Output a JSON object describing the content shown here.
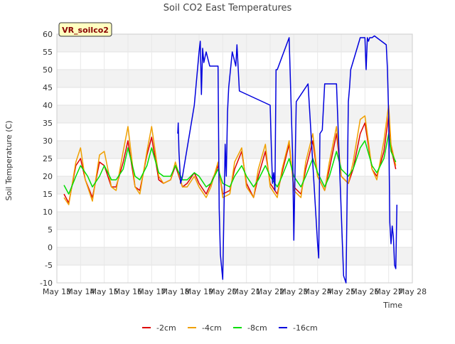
{
  "chart_data": {
    "type": "line",
    "title": "Soil CO2 East Temperatures",
    "xlabel": "Time",
    "ylabel": "Soil Temperature (C)",
    "site_label": "VR_soilco2",
    "x_ticks": [
      "May 13",
      "May 14",
      "May 15",
      "May 16",
      "May 17",
      "May 18",
      "May 19",
      "May 20",
      "May 21",
      "May 22",
      "May 23",
      "May 24",
      "May 25",
      "May 26",
      "May 27",
      "May 28"
    ],
    "xlim": [
      13,
      28
    ],
    "ylim": [
      -10,
      60
    ],
    "y_ticks": [
      -10,
      -5,
      0,
      5,
      10,
      15,
      20,
      25,
      30,
      35,
      40,
      45,
      50,
      55,
      60
    ],
    "grid": true,
    "legend_position": "bottom",
    "series": [
      {
        "name": "-2cm",
        "color": "#dd0000",
        "x": [
          13.3,
          13.5,
          13.8,
          14.0,
          14.2,
          14.5,
          14.8,
          15.0,
          15.3,
          15.5,
          15.8,
          16.0,
          16.3,
          16.5,
          16.8,
          17.0,
          17.3,
          17.5,
          17.8,
          18.0,
          18.3,
          18.5,
          18.8,
          19.0,
          19.3,
          19.5,
          19.8,
          20.0,
          20.3,
          20.5,
          20.8,
          21.0,
          21.3,
          21.5,
          21.8,
          22.0,
          22.3,
          22.5,
          22.8,
          23.0,
          23.3,
          23.5,
          23.8,
          24.0,
          24.3,
          24.5,
          24.8,
          25.0,
          25.3,
          25.5,
          25.8,
          26.0,
          26.3,
          26.5,
          26.8,
          27.0,
          27.1,
          27.3
        ],
        "y": [
          15,
          12.5,
          23,
          25,
          19,
          14,
          24,
          23,
          17,
          17,
          24,
          30,
          17,
          16,
          26,
          31,
          19,
          18,
          19,
          23,
          17,
          18,
          21,
          18,
          15,
          18,
          23,
          15,
          16,
          22,
          27,
          18,
          14,
          20,
          27,
          18,
          15,
          21,
          29,
          17,
          15,
          22,
          30,
          20,
          16,
          22,
          32,
          20,
          18,
          22,
          32,
          35,
          22,
          20,
          27,
          37,
          28,
          22
        ]
      },
      {
        "name": "-4cm",
        "color": "#f0a000",
        "x": [
          13.3,
          13.5,
          13.8,
          14.0,
          14.2,
          14.5,
          14.8,
          15.0,
          15.3,
          15.5,
          15.8,
          16.0,
          16.3,
          16.5,
          16.8,
          17.0,
          17.3,
          17.5,
          17.8,
          18.0,
          18.3,
          18.5,
          18.8,
          19.0,
          19.3,
          19.5,
          19.8,
          20.0,
          20.3,
          20.5,
          20.8,
          21.0,
          21.3,
          21.5,
          21.8,
          22.0,
          22.3,
          22.5,
          22.8,
          23.0,
          23.3,
          23.5,
          23.8,
          24.0,
          24.3,
          24.5,
          24.8,
          25.0,
          25.3,
          25.5,
          25.8,
          26.0,
          26.3,
          26.5,
          26.8,
          27.0,
          27.1,
          27.3
        ],
        "y": [
          14,
          12,
          24,
          28,
          19,
          13,
          26,
          27,
          17,
          16,
          27,
          34,
          17,
          15,
          27,
          34,
          20,
          18,
          19,
          24,
          17,
          17,
          20,
          17,
          14,
          17,
          24,
          14,
          15,
          24,
          28,
          17,
          14,
          22,
          29,
          17,
          14,
          22,
          30,
          16,
          14,
          24,
          32,
          20,
          16,
          24,
          34,
          20,
          18,
          24,
          36,
          37,
          22,
          19,
          30,
          40,
          29,
          23
        ]
      },
      {
        "name": "-8cm",
        "color": "#00dd00",
        "x": [
          13.3,
          13.5,
          13.8,
          14.0,
          14.3,
          14.5,
          14.8,
          15.0,
          15.3,
          15.5,
          15.8,
          16.0,
          16.3,
          16.5,
          16.8,
          17.0,
          17.3,
          17.5,
          17.8,
          18.0,
          18.3,
          18.5,
          18.8,
          19.0,
          19.3,
          19.5,
          19.8,
          20.0,
          20.3,
          20.5,
          20.8,
          21.0,
          21.3,
          21.5,
          21.8,
          22.0,
          22.3,
          22.5,
          22.8,
          23.0,
          23.3,
          23.5,
          23.8,
          24.0,
          24.3,
          24.5,
          24.8,
          25.0,
          25.3,
          25.5,
          25.8,
          26.0,
          26.3,
          26.5,
          26.8,
          27.0,
          27.1,
          27.3
        ],
        "y": [
          17.5,
          15,
          20,
          23,
          20,
          17,
          20,
          23,
          19,
          19,
          22,
          28,
          20,
          19,
          23,
          28,
          21,
          20,
          20,
          23,
          19,
          19,
          21,
          20,
          17,
          18,
          22,
          18,
          17,
          20,
          23,
          20,
          17,
          19,
          23,
          20,
          17,
          20,
          25,
          20,
          17,
          20,
          25,
          21,
          17,
          20,
          27,
          22,
          20,
          22,
          28,
          30,
          23,
          21,
          25,
          32,
          27,
          24
        ]
      },
      {
        "name": "-16cm",
        "color": "#0000dd",
        "x": [
          18.1,
          18.12,
          18.15,
          18.2,
          18.22,
          18.3,
          18.8,
          19.0,
          19.05,
          19.1,
          19.15,
          19.2,
          19.3,
          19.45,
          19.8,
          19.85,
          19.9,
          20.0,
          20.1,
          20.15,
          20.2,
          20.25,
          20.4,
          20.55,
          20.6,
          20.7,
          22.0,
          22.05,
          22.1,
          22.15,
          22.2,
          22.25,
          22.3,
          22.8,
          22.95,
          23.0,
          23.1,
          23.6,
          24.0,
          24.05,
          24.1,
          24.2,
          24.3,
          24.8,
          25.1,
          25.2,
          25.3,
          25.35,
          25.4,
          25.8,
          26.0,
          26.05,
          26.1,
          26.15,
          26.2,
          26.3,
          26.4,
          26.5,
          26.9,
          26.95,
          27.0,
          27.05,
          27.1,
          27.15,
          27.2,
          27.25,
          27.3,
          27.35
        ],
        "y": [
          32,
          35,
          27,
          21,
          18,
          20,
          40,
          55,
          58,
          43,
          56,
          52,
          55,
          51,
          51,
          11,
          -2,
          -9,
          29,
          20,
          38,
          45,
          55,
          51,
          57,
          44,
          40,
          28,
          18,
          21,
          16,
          50,
          50,
          59,
          25,
          2,
          41,
          46,
          1,
          -3,
          32,
          33,
          46,
          46,
          -8,
          -10,
          41,
          45,
          50,
          59,
          59,
          50,
          59,
          58,
          59,
          59,
          59.5,
          59,
          57,
          50,
          37,
          7,
          1,
          6,
          3,
          -5,
          -6,
          12
        ]
      }
    ]
  }
}
